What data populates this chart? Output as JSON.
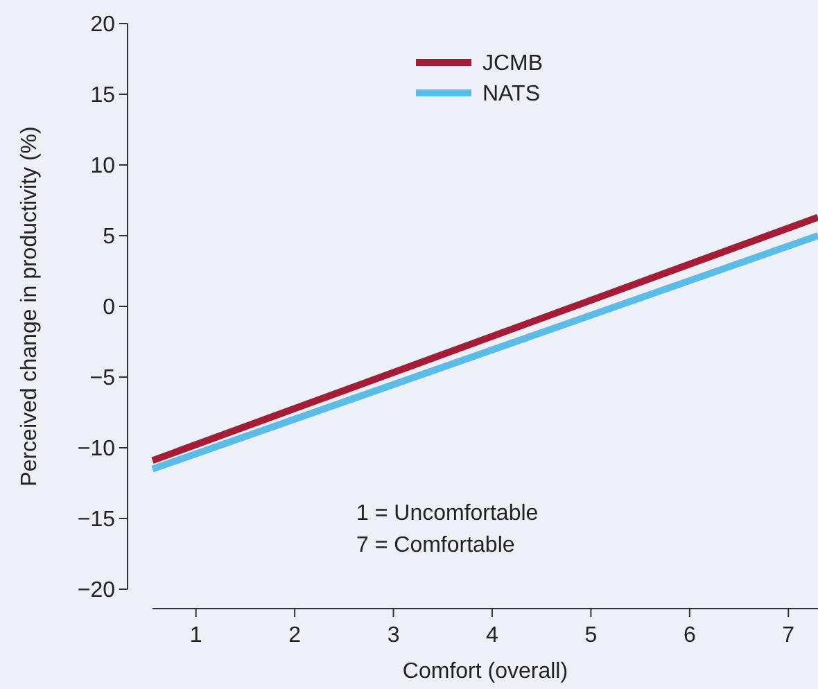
{
  "chart_data": {
    "type": "line",
    "xlabel": "Comfort (overall)",
    "ylabel": "Perceived change in productivity (%)",
    "xlim": [
      0.56,
      7.3
    ],
    "xticks": [
      1,
      2,
      3,
      4,
      5,
      6,
      7
    ],
    "ylim": [
      -20,
      20
    ],
    "yticks": [
      -20,
      -15,
      -10,
      -5,
      0,
      5,
      10,
      15,
      20
    ],
    "x": [
      0.56,
      7.3
    ],
    "series": [
      {
        "name": "JCMB",
        "color": "#a51c36",
        "values": [
          -10.9,
          6.3
        ]
      },
      {
        "name": "NATS",
        "color": "#5bbce8",
        "values": [
          -11.5,
          5.0
        ]
      }
    ],
    "legend": "top",
    "grid": false,
    "annotations": [
      "1 = Uncomfortable",
      "7 = Comfortable"
    ]
  }
}
